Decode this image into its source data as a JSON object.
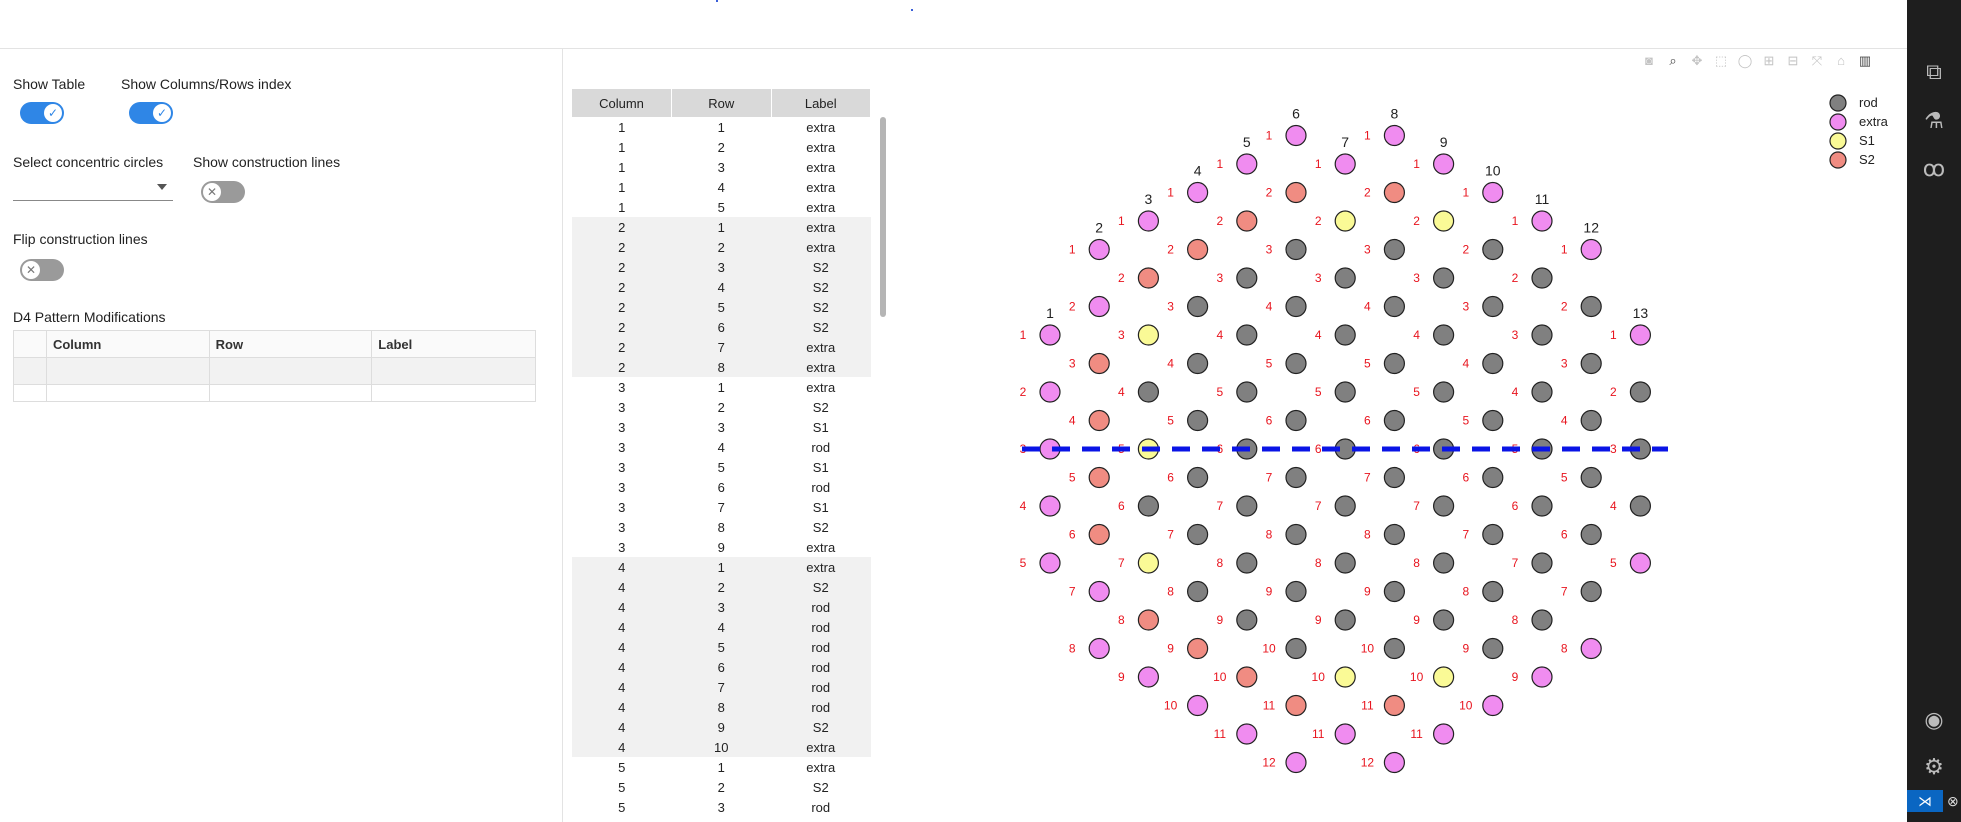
{
  "controls": {
    "show_table": "Show Table",
    "show_index": "Show Columns/Rows index",
    "select_circles": "Select concentric circles",
    "show_lines": "Show construction lines",
    "flip_lines": "Flip construction lines",
    "d4_title": "D4 Pattern Modifications",
    "toggles": {
      "show_table": true,
      "show_index": true,
      "show_lines": false,
      "flip_lines": false
    }
  },
  "mod_table": {
    "headers": [
      "Column",
      "Row",
      "Label"
    ]
  },
  "data_table": {
    "headers": [
      "Column",
      "Row",
      "Label"
    ],
    "rows": [
      [
        "1",
        "1",
        "extra"
      ],
      [
        "1",
        "2",
        "extra"
      ],
      [
        "1",
        "3",
        "extra"
      ],
      [
        "1",
        "4",
        "extra"
      ],
      [
        "1",
        "5",
        "extra"
      ],
      [
        "2",
        "1",
        "extra"
      ],
      [
        "2",
        "2",
        "extra"
      ],
      [
        "2",
        "3",
        "S2"
      ],
      [
        "2",
        "4",
        "S2"
      ],
      [
        "2",
        "5",
        "S2"
      ],
      [
        "2",
        "6",
        "S2"
      ],
      [
        "2",
        "7",
        "extra"
      ],
      [
        "2",
        "8",
        "extra"
      ],
      [
        "3",
        "1",
        "extra"
      ],
      [
        "3",
        "2",
        "S2"
      ],
      [
        "3",
        "3",
        "S1"
      ],
      [
        "3",
        "4",
        "rod"
      ],
      [
        "3",
        "5",
        "S1"
      ],
      [
        "3",
        "6",
        "rod"
      ],
      [
        "3",
        "7",
        "S1"
      ],
      [
        "3",
        "8",
        "S2"
      ],
      [
        "3",
        "9",
        "extra"
      ],
      [
        "4",
        "1",
        "extra"
      ],
      [
        "4",
        "2",
        "S2"
      ],
      [
        "4",
        "3",
        "rod"
      ],
      [
        "4",
        "4",
        "rod"
      ],
      [
        "4",
        "5",
        "rod"
      ],
      [
        "4",
        "6",
        "rod"
      ],
      [
        "4",
        "7",
        "rod"
      ],
      [
        "4",
        "8",
        "rod"
      ],
      [
        "4",
        "9",
        "S2"
      ],
      [
        "4",
        "10",
        "extra"
      ],
      [
        "5",
        "1",
        "extra"
      ],
      [
        "5",
        "2",
        "S2"
      ],
      [
        "5",
        "3",
        "rod"
      ]
    ]
  },
  "legend": [
    {
      "name": "rod",
      "color": "#808080"
    },
    {
      "name": "extra",
      "color": "#f08cf0"
    },
    {
      "name": "S1",
      "color": "#fafa96"
    },
    {
      "name": "S2",
      "color": "#f08c82"
    }
  ],
  "chart_data": {
    "type": "scatter",
    "columns": [
      {
        "col": 1,
        "labels": [
          "extra",
          "extra",
          "extra",
          "extra",
          "extra"
        ]
      },
      {
        "col": 2,
        "labels": [
          "extra",
          "extra",
          "S2",
          "S2",
          "S2",
          "S2",
          "extra",
          "extra"
        ]
      },
      {
        "col": 3,
        "labels": [
          "extra",
          "S2",
          "S1",
          "rod",
          "S1",
          "rod",
          "S1",
          "S2",
          "extra"
        ]
      },
      {
        "col": 4,
        "labels": [
          "extra",
          "S2",
          "rod",
          "rod",
          "rod",
          "rod",
          "rod",
          "rod",
          "S2",
          "extra"
        ]
      },
      {
        "col": 5,
        "labels": [
          "extra",
          "S2",
          "rod",
          "rod",
          "rod",
          "rod",
          "rod",
          "rod",
          "rod",
          "S2",
          "extra"
        ]
      },
      {
        "col": 6,
        "labels": [
          "extra",
          "S2",
          "rod",
          "rod",
          "rod",
          "rod",
          "rod",
          "rod",
          "rod",
          "rod",
          "S2",
          "extra"
        ]
      },
      {
        "col": 7,
        "labels": [
          "extra",
          "S1",
          "rod",
          "rod",
          "rod",
          "rod",
          "rod",
          "rod",
          "rod",
          "S1",
          "extra"
        ]
      },
      {
        "col": 8,
        "labels": [
          "extra",
          "S2",
          "rod",
          "rod",
          "rod",
          "rod",
          "rod",
          "rod",
          "rod",
          "rod",
          "S2",
          "extra"
        ]
      },
      {
        "col": 9,
        "labels": [
          "extra",
          "S1",
          "rod",
          "rod",
          "rod",
          "rod",
          "rod",
          "rod",
          "rod",
          "S1",
          "extra"
        ]
      },
      {
        "col": 10,
        "labels": [
          "extra",
          "rod",
          "rod",
          "rod",
          "rod",
          "rod",
          "rod",
          "rod",
          "rod",
          "extra"
        ]
      },
      {
        "col": 11,
        "labels": [
          "extra",
          "rod",
          "rod",
          "rod",
          "rod",
          "rod",
          "rod",
          "rod",
          "extra"
        ]
      },
      {
        "col": 12,
        "labels": [
          "extra",
          "rod",
          "rod",
          "rod",
          "rod",
          "rod",
          "rod",
          "extra"
        ]
      },
      {
        "col": 13,
        "labels": [
          "extra",
          "rod",
          "rod",
          "rod",
          "extra"
        ]
      }
    ],
    "construction_line": "horizontal dashed blue line through center row",
    "legend_position": "top-right"
  },
  "modebar_icons": [
    "camera-icon",
    "zoom-icon",
    "pan-icon",
    "box-select-icon",
    "lasso-icon",
    "zoom-in-icon",
    "zoom-out-icon",
    "autoscale-icon",
    "home-icon",
    "plotly-logo-icon"
  ],
  "sidebar_icons": [
    "extensions-icon",
    "flask-icon",
    "python-icon",
    "account-icon",
    "gear-icon"
  ]
}
